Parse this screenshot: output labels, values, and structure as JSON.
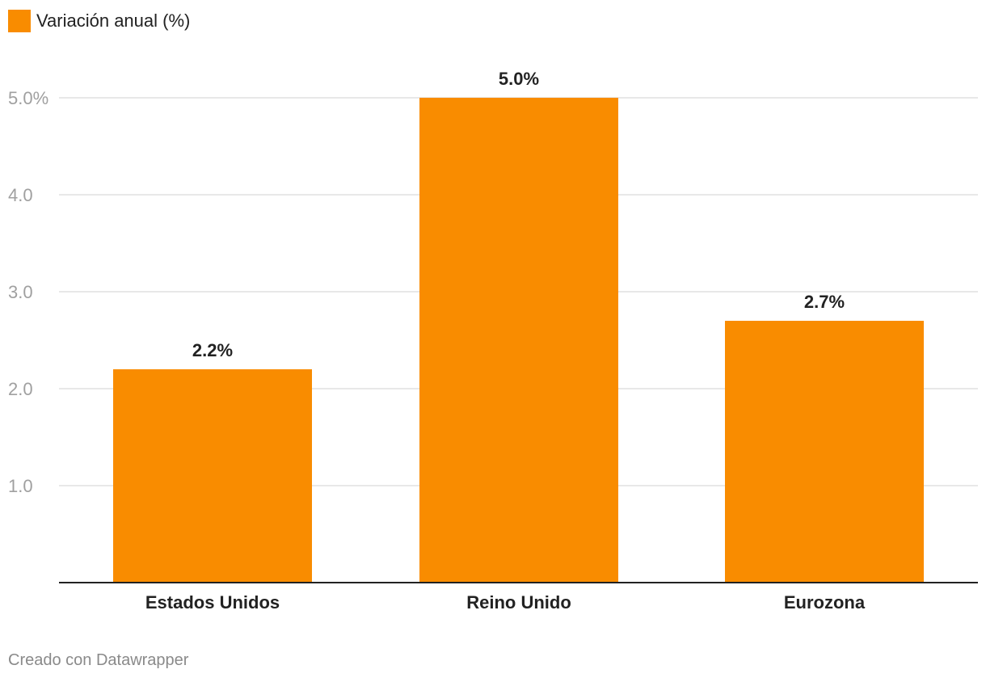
{
  "legend": {
    "label": "Variación anual (%)",
    "color": "#f98c00"
  },
  "footer": {
    "credit": "Creado con Datawrapper"
  },
  "chart_data": {
    "type": "bar",
    "categories": [
      "Estados Unidos",
      "Reino Unido",
      "Eurozona"
    ],
    "series": [
      {
        "name": "Variación anual (%)",
        "values": [
          2.2,
          5.0,
          2.7
        ]
      }
    ],
    "value_labels": [
      "2.2%",
      "5.0%",
      "2.7%"
    ],
    "y_ticks": [
      1.0,
      2.0,
      3.0,
      4.0,
      5.0
    ],
    "y_tick_labels": [
      "1.0",
      "2.0",
      "3.0",
      "4.0",
      "5.0%"
    ],
    "ylim": [
      0,
      5.0
    ],
    "grid": true,
    "bar_color": "#f98c00",
    "grid_color": "#e0e0e0",
    "axis_color": "#222222",
    "tick_label_color": "#a0a0a0"
  }
}
